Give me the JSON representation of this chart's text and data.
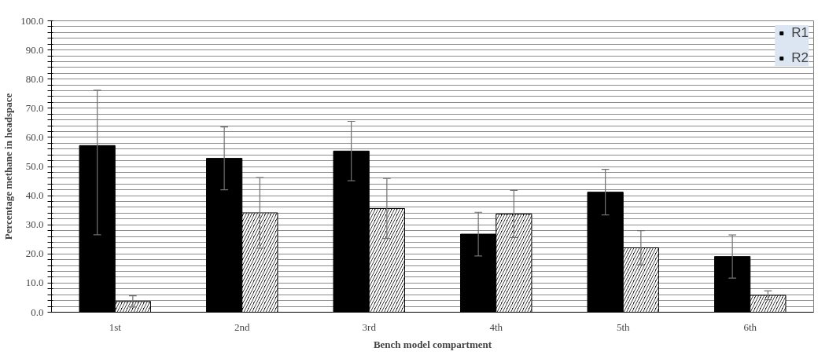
{
  "chart_data": {
    "type": "bar",
    "xlabel": "Bench model compartment",
    "ylabel": "Percentage methane in headspace",
    "categories": [
      "1st",
      "2nd",
      "3rd",
      "4th",
      "5th",
      "6th"
    ],
    "series": [
      {
        "name": "R1",
        "color": "#000000",
        "values": [
          57.2,
          52.8,
          55.3,
          26.8,
          41.2,
          19.1
        ],
        "errors": [
          [
            26.6,
            76.2
          ],
          10.8,
          10.2,
          7.5,
          7.8,
          7.4
        ]
      },
      {
        "name": "R2",
        "color": "#000000",
        "values": [
          3.7,
          34.1,
          35.6,
          33.7,
          22.1,
          5.8
        ],
        "errors": [
          1.9,
          12.1,
          10.3,
          8.1,
          5.9,
          1.5
        ]
      }
    ],
    "ylim": [
      0,
      100
    ],
    "yticks": [
      {
        "value": 0,
        "label": "0.0"
      },
      {
        "value": 2,
        "label": null
      },
      {
        "value": 4,
        "label": null
      },
      {
        "value": 6,
        "label": null
      },
      {
        "value": 8,
        "label": null
      },
      {
        "value": 10,
        "label": "10.0"
      },
      {
        "value": 12,
        "label": null
      },
      {
        "value": 14,
        "label": null
      },
      {
        "value": 16,
        "label": null
      },
      {
        "value": 18,
        "label": null
      },
      {
        "value": 20,
        "label": "20.0"
      },
      {
        "value": 22,
        "label": null
      },
      {
        "value": 24,
        "label": null
      },
      {
        "value": 26,
        "label": null
      },
      {
        "value": 28,
        "label": null
      },
      {
        "value": 30,
        "label": "30.0"
      },
      {
        "value": 32,
        "label": null
      },
      {
        "value": 34,
        "label": null
      },
      {
        "value": 36,
        "label": null
      },
      {
        "value": 38,
        "label": null
      },
      {
        "value": 40,
        "label": "40.0"
      },
      {
        "value": 42,
        "label": null
      },
      {
        "value": 44,
        "label": null
      },
      {
        "value": 46,
        "label": null
      },
      {
        "value": 48,
        "label": null
      },
      {
        "value": 50,
        "label": "50.0"
      },
      {
        "value": 52,
        "label": null
      },
      {
        "value": 54,
        "label": null
      },
      {
        "value": 56,
        "label": null
      },
      {
        "value": 58,
        "label": null
      },
      {
        "value": 60,
        "label": "60.0"
      },
      {
        "value": 62,
        "label": null
      },
      {
        "value": 64,
        "label": null
      },
      {
        "value": 66,
        "label": null
      },
      {
        "value": 68,
        "label": null
      },
      {
        "value": 70,
        "label": "70.0"
      },
      {
        "value": 72,
        "label": null
      },
      {
        "value": 74,
        "label": null
      },
      {
        "value": 76,
        "label": null
      },
      {
        "value": 78,
        "label": null
      },
      {
        "value": 80,
        "label": "80.0"
      },
      {
        "value": 82,
        "label": null
      },
      {
        "value": 84,
        "label": null
      },
      {
        "value": 86,
        "label": null
      },
      {
        "value": 88,
        "label": null
      },
      {
        "value": 90,
        "label": "90.0"
      },
      {
        "value": 92,
        "label": null
      },
      {
        "value": 94,
        "label": null
      },
      {
        "value": 96,
        "label": null
      },
      {
        "value": 98,
        "label": null
      },
      {
        "value": 100,
        "label": "100.0"
      }
    ],
    "grid": "y",
    "legend": "top right"
  }
}
